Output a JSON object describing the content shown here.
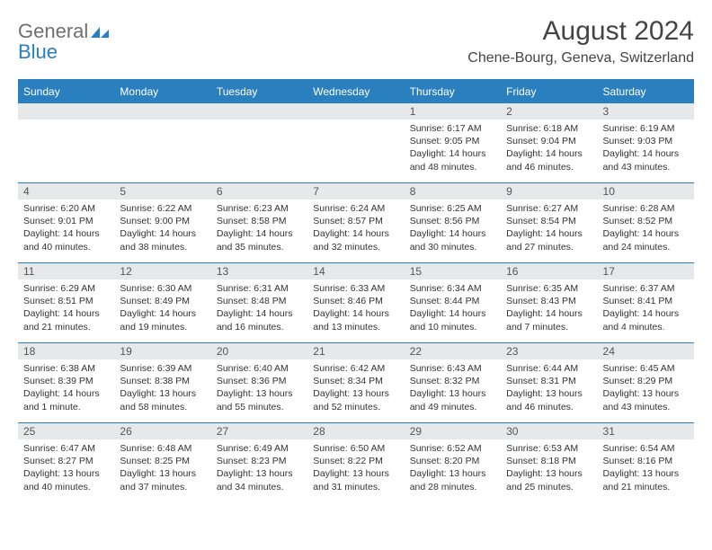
{
  "logo": {
    "gray": "General",
    "blue": "Blue"
  },
  "title": "August 2024",
  "location": "Chene-Bourg, Geneva, Switzerland",
  "colors": {
    "accent": "#2a7fbf",
    "header_bg": "#2a7fbf",
    "daynum_bg": "#e7e8ea",
    "text": "#333333",
    "logo_gray": "#6f6f6f",
    "logo_blue": "#2a7fbf"
  },
  "weekdays": [
    "Sunday",
    "Monday",
    "Tuesday",
    "Wednesday",
    "Thursday",
    "Friday",
    "Saturday"
  ],
  "weeks": [
    {
      "nums": [
        "",
        "",
        "",
        "",
        "1",
        "2",
        "3"
      ],
      "cells": [
        {
          "sunrise": "",
          "sunset": "",
          "daylight": ""
        },
        {
          "sunrise": "",
          "sunset": "",
          "daylight": ""
        },
        {
          "sunrise": "",
          "sunset": "",
          "daylight": ""
        },
        {
          "sunrise": "",
          "sunset": "",
          "daylight": ""
        },
        {
          "sunrise": "Sunrise: 6:17 AM",
          "sunset": "Sunset: 9:05 PM",
          "daylight": "Daylight: 14 hours and 48 minutes."
        },
        {
          "sunrise": "Sunrise: 6:18 AM",
          "sunset": "Sunset: 9:04 PM",
          "daylight": "Daylight: 14 hours and 46 minutes."
        },
        {
          "sunrise": "Sunrise: 6:19 AM",
          "sunset": "Sunset: 9:03 PM",
          "daylight": "Daylight: 14 hours and 43 minutes."
        }
      ]
    },
    {
      "nums": [
        "4",
        "5",
        "6",
        "7",
        "8",
        "9",
        "10"
      ],
      "cells": [
        {
          "sunrise": "Sunrise: 6:20 AM",
          "sunset": "Sunset: 9:01 PM",
          "daylight": "Daylight: 14 hours and 40 minutes."
        },
        {
          "sunrise": "Sunrise: 6:22 AM",
          "sunset": "Sunset: 9:00 PM",
          "daylight": "Daylight: 14 hours and 38 minutes."
        },
        {
          "sunrise": "Sunrise: 6:23 AM",
          "sunset": "Sunset: 8:58 PM",
          "daylight": "Daylight: 14 hours and 35 minutes."
        },
        {
          "sunrise": "Sunrise: 6:24 AM",
          "sunset": "Sunset: 8:57 PM",
          "daylight": "Daylight: 14 hours and 32 minutes."
        },
        {
          "sunrise": "Sunrise: 6:25 AM",
          "sunset": "Sunset: 8:56 PM",
          "daylight": "Daylight: 14 hours and 30 minutes."
        },
        {
          "sunrise": "Sunrise: 6:27 AM",
          "sunset": "Sunset: 8:54 PM",
          "daylight": "Daylight: 14 hours and 27 minutes."
        },
        {
          "sunrise": "Sunrise: 6:28 AM",
          "sunset": "Sunset: 8:52 PM",
          "daylight": "Daylight: 14 hours and 24 minutes."
        }
      ]
    },
    {
      "nums": [
        "11",
        "12",
        "13",
        "14",
        "15",
        "16",
        "17"
      ],
      "cells": [
        {
          "sunrise": "Sunrise: 6:29 AM",
          "sunset": "Sunset: 8:51 PM",
          "daylight": "Daylight: 14 hours and 21 minutes."
        },
        {
          "sunrise": "Sunrise: 6:30 AM",
          "sunset": "Sunset: 8:49 PM",
          "daylight": "Daylight: 14 hours and 19 minutes."
        },
        {
          "sunrise": "Sunrise: 6:31 AM",
          "sunset": "Sunset: 8:48 PM",
          "daylight": "Daylight: 14 hours and 16 minutes."
        },
        {
          "sunrise": "Sunrise: 6:33 AM",
          "sunset": "Sunset: 8:46 PM",
          "daylight": "Daylight: 14 hours and 13 minutes."
        },
        {
          "sunrise": "Sunrise: 6:34 AM",
          "sunset": "Sunset: 8:44 PM",
          "daylight": "Daylight: 14 hours and 10 minutes."
        },
        {
          "sunrise": "Sunrise: 6:35 AM",
          "sunset": "Sunset: 8:43 PM",
          "daylight": "Daylight: 14 hours and 7 minutes."
        },
        {
          "sunrise": "Sunrise: 6:37 AM",
          "sunset": "Sunset: 8:41 PM",
          "daylight": "Daylight: 14 hours and 4 minutes."
        }
      ]
    },
    {
      "nums": [
        "18",
        "19",
        "20",
        "21",
        "22",
        "23",
        "24"
      ],
      "cells": [
        {
          "sunrise": "Sunrise: 6:38 AM",
          "sunset": "Sunset: 8:39 PM",
          "daylight": "Daylight: 14 hours and 1 minute."
        },
        {
          "sunrise": "Sunrise: 6:39 AM",
          "sunset": "Sunset: 8:38 PM",
          "daylight": "Daylight: 13 hours and 58 minutes."
        },
        {
          "sunrise": "Sunrise: 6:40 AM",
          "sunset": "Sunset: 8:36 PM",
          "daylight": "Daylight: 13 hours and 55 minutes."
        },
        {
          "sunrise": "Sunrise: 6:42 AM",
          "sunset": "Sunset: 8:34 PM",
          "daylight": "Daylight: 13 hours and 52 minutes."
        },
        {
          "sunrise": "Sunrise: 6:43 AM",
          "sunset": "Sunset: 8:32 PM",
          "daylight": "Daylight: 13 hours and 49 minutes."
        },
        {
          "sunrise": "Sunrise: 6:44 AM",
          "sunset": "Sunset: 8:31 PM",
          "daylight": "Daylight: 13 hours and 46 minutes."
        },
        {
          "sunrise": "Sunrise: 6:45 AM",
          "sunset": "Sunset: 8:29 PM",
          "daylight": "Daylight: 13 hours and 43 minutes."
        }
      ]
    },
    {
      "nums": [
        "25",
        "26",
        "27",
        "28",
        "29",
        "30",
        "31"
      ],
      "cells": [
        {
          "sunrise": "Sunrise: 6:47 AM",
          "sunset": "Sunset: 8:27 PM",
          "daylight": "Daylight: 13 hours and 40 minutes."
        },
        {
          "sunrise": "Sunrise: 6:48 AM",
          "sunset": "Sunset: 8:25 PM",
          "daylight": "Daylight: 13 hours and 37 minutes."
        },
        {
          "sunrise": "Sunrise: 6:49 AM",
          "sunset": "Sunset: 8:23 PM",
          "daylight": "Daylight: 13 hours and 34 minutes."
        },
        {
          "sunrise": "Sunrise: 6:50 AM",
          "sunset": "Sunset: 8:22 PM",
          "daylight": "Daylight: 13 hours and 31 minutes."
        },
        {
          "sunrise": "Sunrise: 6:52 AM",
          "sunset": "Sunset: 8:20 PM",
          "daylight": "Daylight: 13 hours and 28 minutes."
        },
        {
          "sunrise": "Sunrise: 6:53 AM",
          "sunset": "Sunset: 8:18 PM",
          "daylight": "Daylight: 13 hours and 25 minutes."
        },
        {
          "sunrise": "Sunrise: 6:54 AM",
          "sunset": "Sunset: 8:16 PM",
          "daylight": "Daylight: 13 hours and 21 minutes."
        }
      ]
    }
  ]
}
